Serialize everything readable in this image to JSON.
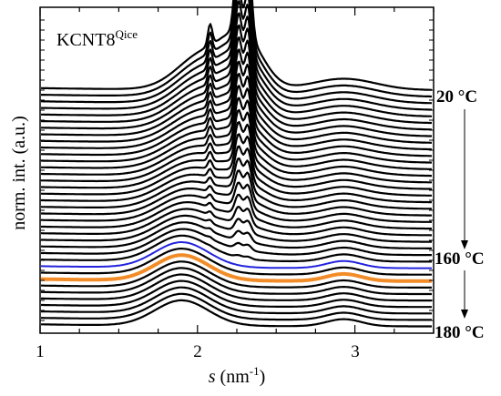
{
  "chart_data": {
    "type": "line",
    "sample_label": "KCNT8",
    "sample_label_sup": "Qice",
    "xlabel": "s",
    "xlabel_unit": "(nm",
    "xlabel_unit_sup": "-1",
    "xlabel_unit_close": ")",
    "ylabel": "norm. int. (a.u.)",
    "xlim": [
      1,
      3.5
    ],
    "x_ticks": [
      "1",
      "2",
      "3"
    ],
    "temperature_labels": [
      "20 °C",
      "160 °C",
      "180 °C"
    ],
    "series_count": 37,
    "highlight_colors": {
      "default": "#000000",
      "blue": "#2222dd",
      "orange": "#f28c28"
    },
    "highlight_indices": {
      "blue": 27,
      "orange": 29
    },
    "features": {
      "peak_1_90": 1.9,
      "peak_2_08": 2.08,
      "peak_2_26": 2.26,
      "peak_2_32": 2.32,
      "peak_2_93": 2.93
    }
  }
}
